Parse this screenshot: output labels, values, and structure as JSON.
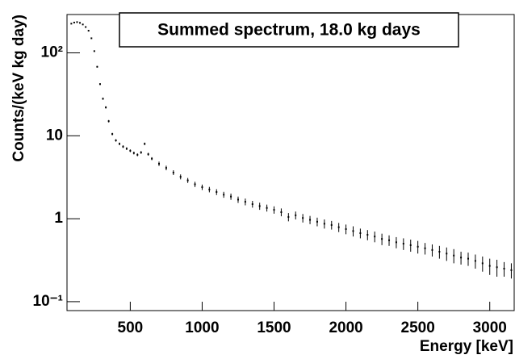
{
  "chart_data": {
    "type": "scatter",
    "title": "Summed spectrum, 18.0 kg days",
    "x_label": "Energy [keV]",
    "y_label": "Counts/(keV kg day)",
    "log_y": true,
    "color": "#000000",
    "xlim": [
      60,
      3170
    ],
    "ylim": [
      0.078,
      290
    ],
    "xticks": [
      500,
      1000,
      1500,
      2000,
      2500,
      3000
    ],
    "yticks": [
      {
        "value": 0.1,
        "label": "10⁻¹"
      },
      1,
      10,
      {
        "value": 100,
        "label": "10²"
      }
    ],
    "x": [
      90,
      110,
      130,
      150,
      170,
      190,
      210,
      230,
      250,
      270,
      290,
      310,
      330,
      350,
      375,
      400,
      425,
      450,
      475,
      500,
      525,
      550,
      575,
      600,
      625,
      650,
      700,
      750,
      800,
      850,
      900,
      950,
      1000,
      1050,
      1100,
      1150,
      1200,
      1250,
      1300,
      1350,
      1400,
      1450,
      1500,
      1550,
      1600,
      1650,
      1700,
      1750,
      1800,
      1850,
      1900,
      1950,
      2000,
      2050,
      2100,
      2150,
      2200,
      2250,
      2300,
      2350,
      2400,
      2450,
      2500,
      2550,
      2600,
      2650,
      2700,
      2750,
      2800,
      2850,
      2900,
      2950,
      3000,
      3050,
      3100,
      3150
    ],
    "values": [
      225,
      232,
      235,
      230,
      220,
      205,
      185,
      150,
      105,
      68,
      42,
      28,
      22,
      15,
      10.5,
      8.8,
      8.0,
      7.4,
      7.0,
      6.6,
      6.2,
      5.9,
      6.3,
      8.0,
      6.0,
      5.3,
      4.6,
      4.1,
      3.6,
      3.2,
      2.9,
      2.6,
      2.4,
      2.25,
      2.1,
      1.95,
      1.85,
      1.7,
      1.6,
      1.5,
      1.42,
      1.35,
      1.28,
      1.2,
      1.05,
      1.1,
      1.02,
      0.97,
      0.92,
      0.87,
      0.84,
      0.79,
      0.75,
      0.71,
      0.67,
      0.64,
      0.61,
      0.57,
      0.55,
      0.52,
      0.5,
      0.48,
      0.46,
      0.44,
      0.42,
      0.4,
      0.38,
      0.36,
      0.34,
      0.33,
      0.31,
      0.29,
      0.27,
      0.26,
      0.25,
      0.24
    ],
    "errors": [
      3,
      3,
      3,
      3,
      3,
      3,
      3,
      2,
      2,
      1.5,
      1,
      0.8,
      0.7,
      0.5,
      0.35,
      0.3,
      0.28,
      0.27,
      0.26,
      0.25,
      0.24,
      0.23,
      0.24,
      0.28,
      0.24,
      0.22,
      0.28,
      0.26,
      0.24,
      0.22,
      0.2,
      0.19,
      0.18,
      0.17,
      0.17,
      0.16,
      0.16,
      0.15,
      0.15,
      0.14,
      0.14,
      0.13,
      0.13,
      0.13,
      0.12,
      0.12,
      0.12,
      0.11,
      0.11,
      0.11,
      0.1,
      0.1,
      0.1,
      0.1,
      0.09,
      0.09,
      0.09,
      0.09,
      0.08,
      0.08,
      0.08,
      0.08,
      0.08,
      0.07,
      0.07,
      0.07,
      0.07,
      0.07,
      0.06,
      0.06,
      0.06,
      0.06,
      0.06,
      0.06,
      0.05,
      0.05
    ]
  }
}
